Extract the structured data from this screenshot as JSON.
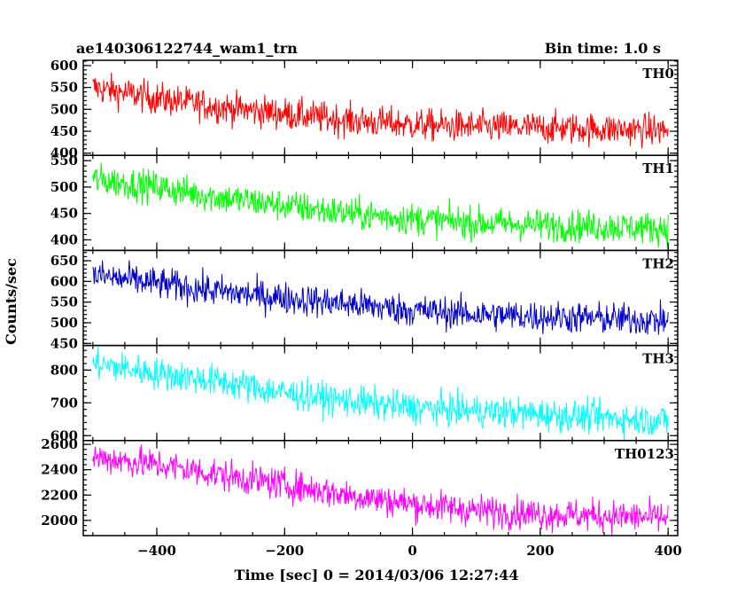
{
  "chart_data": {
    "type": "line",
    "title_left": "ae140306122744_wam1_trn",
    "title_right": "Bin time: 1.0 s",
    "xlabel": "Time [sec] 0 = 2014/03/06 12:27:44",
    "ylabel": "Counts/sec",
    "xlim": [
      -515,
      415
    ],
    "xticks": [
      -400,
      -200,
      0,
      200,
      400
    ],
    "xtick_labels": [
      "−400",
      "−200",
      "0",
      "200",
      "400"
    ],
    "panels": [
      {
        "name": "TH0",
        "color": "#ff0000",
        "ylim": [
          395,
          612
        ],
        "yticks": [
          400,
          450,
          500,
          550,
          600
        ],
        "ytick_labels": [
          "400",
          "450",
          "500",
          "550",
          "600"
        ],
        "x": [
          -500,
          -400,
          -300,
          -200,
          -100,
          0,
          100,
          200,
          300,
          400
        ],
        "values": [
          550,
          525,
          505,
          490,
          475,
          465,
          460,
          458,
          455,
          452
        ]
      },
      {
        "name": "TH1",
        "color": "#00ff00",
        "ylim": [
          380,
          560
        ],
        "yticks": [
          400,
          450,
          500,
          550
        ],
        "ytick_labels": [
          "400",
          "450",
          "500",
          "550"
        ],
        "x": [
          -500,
          -400,
          -300,
          -200,
          -100,
          0,
          100,
          200,
          300,
          400
        ],
        "values": [
          515,
          500,
          480,
          465,
          450,
          440,
          432,
          428,
          425,
          422
        ]
      },
      {
        "name": "TH2",
        "color": "#0000cd",
        "ylim": [
          445,
          675
        ],
        "yticks": [
          450,
          500,
          550,
          600,
          650
        ],
        "ytick_labels": [
          "450",
          "500",
          "550",
          "600",
          "650"
        ],
        "x": [
          -500,
          -400,
          -300,
          -200,
          -100,
          0,
          100,
          200,
          300,
          400
        ],
        "values": [
          615,
          595,
          575,
          560,
          545,
          530,
          520,
          515,
          510,
          505
        ]
      },
      {
        "name": "TH3",
        "color": "#00ffff",
        "ylim": [
          585,
          875
        ],
        "yticks": [
          600,
          700,
          800
        ],
        "ytick_labels": [
          "600",
          "700",
          "800"
        ],
        "x": [
          -500,
          -400,
          -300,
          -200,
          -100,
          0,
          100,
          200,
          300,
          400
        ],
        "values": [
          820,
          790,
          765,
          730,
          705,
          685,
          675,
          665,
          655,
          645
        ]
      },
      {
        "name": "TH0123",
        "color": "#ff00ff",
        "ylim": [
          1880,
          2630
        ],
        "yticks": [
          2000,
          2200,
          2400,
          2600
        ],
        "ytick_labels": [
          "2000",
          "2200",
          "2400",
          "2600"
        ],
        "x": [
          -500,
          -400,
          -300,
          -200,
          -100,
          0,
          100,
          200,
          300,
          400
        ],
        "values": [
          2500,
          2440,
          2360,
          2280,
          2200,
          2130,
          2080,
          2050,
          2035,
          2020
        ]
      }
    ]
  }
}
